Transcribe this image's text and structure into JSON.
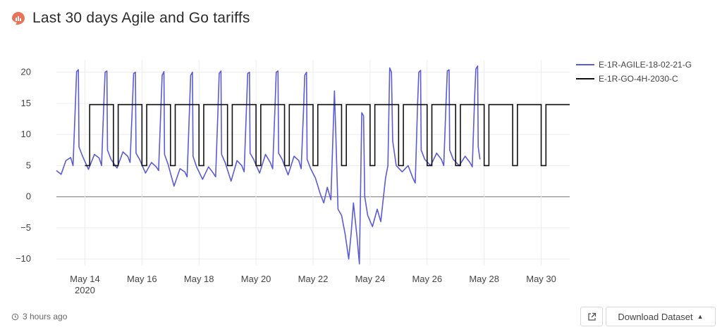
{
  "header": {
    "title": "Last 30 days Agile and Go tariffs"
  },
  "footer": {
    "updated": "3 hours ago",
    "download_label": "Download Dataset",
    "download_caret": "▲"
  },
  "icons": {
    "brand": "chart-badge-icon",
    "clock": "history-icon",
    "external": "external-link-icon",
    "caret": "caret-up-icon"
  },
  "colors": {
    "agile": "#5b5bd6",
    "go": "#111111",
    "brand": "#e8735a",
    "zero_line": "#999999",
    "grid": "#ececec"
  },
  "chart_data": {
    "type": "line",
    "title": "Last 30 days Agile and Go tariffs",
    "xlabel": "",
    "ylabel": "",
    "x_range": [
      "2020-05-13",
      "2020-05-31"
    ],
    "y_range": [
      -11,
      22
    ],
    "y_ticks": [
      20,
      15,
      10,
      5,
      0,
      -5,
      -10
    ],
    "x_ticks": [
      {
        "date": "2020-05-14",
        "label": "May 14",
        "sublabel": "2020"
      },
      {
        "date": "2020-05-16",
        "label": "May 16",
        "sublabel": ""
      },
      {
        "date": "2020-05-18",
        "label": "May 18",
        "sublabel": ""
      },
      {
        "date": "2020-05-20",
        "label": "May 20",
        "sublabel": ""
      },
      {
        "date": "2020-05-22",
        "label": "May 22",
        "sublabel": ""
      },
      {
        "date": "2020-05-24",
        "label": "May 24",
        "sublabel": ""
      },
      {
        "date": "2020-05-26",
        "label": "May 26",
        "sublabel": ""
      },
      {
        "date": "2020-05-28",
        "label": "May 28",
        "sublabel": ""
      },
      {
        "date": "2020-05-30",
        "label": "May 30",
        "sublabel": ""
      }
    ],
    "grid": true,
    "legend_position": "top-right",
    "series": [
      {
        "name": "E-1R-AGILE-18-02-21-G",
        "color": "#5b5bd6",
        "points": [
          [
            "2020-05-13 00:00",
            4.2
          ],
          [
            "2020-05-13 04:00",
            3.6
          ],
          [
            "2020-05-13 08:00",
            5.8
          ],
          [
            "2020-05-13 12:00",
            6.3
          ],
          [
            "2020-05-13 14:00",
            5.0
          ],
          [
            "2020-05-13 16:00",
            15.0
          ],
          [
            "2020-05-13 17:00",
            20.1
          ],
          [
            "2020-05-13 18:30",
            20.4
          ],
          [
            "2020-05-13 19:00",
            8.0
          ],
          [
            "2020-05-13 22:00",
            6.5
          ],
          [
            "2020-05-14 03:00",
            4.4
          ],
          [
            "2020-05-14 08:00",
            6.8
          ],
          [
            "2020-05-14 12:00",
            6.2
          ],
          [
            "2020-05-14 14:00",
            5.0
          ],
          [
            "2020-05-14 16:00",
            15.5
          ],
          [
            "2020-05-14 17:00",
            20.0
          ],
          [
            "2020-05-14 18:30",
            20.2
          ],
          [
            "2020-05-14 19:00",
            7.5
          ],
          [
            "2020-05-14 22:00",
            6.0
          ],
          [
            "2020-05-15 03:00",
            4.6
          ],
          [
            "2020-05-15 08:00",
            7.2
          ],
          [
            "2020-05-15 12:00",
            6.5
          ],
          [
            "2020-05-15 14:00",
            5.5
          ],
          [
            "2020-05-15 16:00",
            15.0
          ],
          [
            "2020-05-15 17:00",
            19.8
          ],
          [
            "2020-05-15 18:30",
            20.0
          ],
          [
            "2020-05-15 19:00",
            7.0
          ],
          [
            "2020-05-15 22:00",
            6.0
          ],
          [
            "2020-05-16 03:00",
            3.8
          ],
          [
            "2020-05-16 08:00",
            5.5
          ],
          [
            "2020-05-16 12:00",
            4.8
          ],
          [
            "2020-05-16 14:00",
            4.2
          ],
          [
            "2020-05-16 16:00",
            14.5
          ],
          [
            "2020-05-16 17:00",
            19.5
          ],
          [
            "2020-05-16 18:30",
            20.1
          ],
          [
            "2020-05-16 19:00",
            6.8
          ],
          [
            "2020-05-16 22:00",
            5.2
          ],
          [
            "2020-05-17 03:00",
            1.7
          ],
          [
            "2020-05-17 08:00",
            4.5
          ],
          [
            "2020-05-17 12:00",
            4.0
          ],
          [
            "2020-05-17 14:00",
            3.2
          ],
          [
            "2020-05-17 16:00",
            14.0
          ],
          [
            "2020-05-17 17:00",
            19.5
          ],
          [
            "2020-05-17 18:30",
            20.0
          ],
          [
            "2020-05-17 19:00",
            6.5
          ],
          [
            "2020-05-17 22:00",
            4.8
          ],
          [
            "2020-05-18 03:00",
            2.8
          ],
          [
            "2020-05-18 08:00",
            4.8
          ],
          [
            "2020-05-18 12:00",
            3.8
          ],
          [
            "2020-05-18 14:00",
            3.2
          ],
          [
            "2020-05-18 16:00",
            14.0
          ],
          [
            "2020-05-18 17:00",
            19.8
          ],
          [
            "2020-05-18 18:30",
            20.2
          ],
          [
            "2020-05-18 19:00",
            6.8
          ],
          [
            "2020-05-18 22:00",
            5.5
          ],
          [
            "2020-05-19 03:00",
            2.5
          ],
          [
            "2020-05-19 08:00",
            5.8
          ],
          [
            "2020-05-19 12:00",
            5.0
          ],
          [
            "2020-05-19 14:00",
            4.0
          ],
          [
            "2020-05-19 16:00",
            14.5
          ],
          [
            "2020-05-19 17:00",
            19.8
          ],
          [
            "2020-05-19 18:30",
            20.0
          ],
          [
            "2020-05-19 19:00",
            7.0
          ],
          [
            "2020-05-19 22:00",
            6.0
          ],
          [
            "2020-05-20 03:00",
            3.8
          ],
          [
            "2020-05-20 08:00",
            6.8
          ],
          [
            "2020-05-20 12:00",
            5.5
          ],
          [
            "2020-05-20 14:00",
            4.5
          ],
          [
            "2020-05-20 16:00",
            14.5
          ],
          [
            "2020-05-20 17:00",
            20.0
          ],
          [
            "2020-05-20 18:30",
            20.2
          ],
          [
            "2020-05-20 19:00",
            7.0
          ],
          [
            "2020-05-20 22:00",
            6.0
          ],
          [
            "2020-05-21 03:00",
            3.5
          ],
          [
            "2020-05-21 08:00",
            6.5
          ],
          [
            "2020-05-21 12:00",
            5.8
          ],
          [
            "2020-05-21 14:00",
            4.5
          ],
          [
            "2020-05-21 16:00",
            14.0
          ],
          [
            "2020-05-21 17:00",
            19.5
          ],
          [
            "2020-05-21 18:30",
            20.0
          ],
          [
            "2020-05-21 19:00",
            6.0
          ],
          [
            "2020-05-21 22:00",
            4.5
          ],
          [
            "2020-05-22 02:00",
            3.0
          ],
          [
            "2020-05-22 06:00",
            0.5
          ],
          [
            "2020-05-22 09:00",
            -1.0
          ],
          [
            "2020-05-22 12:00",
            1.5
          ],
          [
            "2020-05-22 15:00",
            -0.5
          ],
          [
            "2020-05-22 18:00",
            17.0
          ],
          [
            "2020-05-22 19:00",
            11.0
          ],
          [
            "2020-05-22 21:00",
            -2.0
          ],
          [
            "2020-05-23 00:00",
            -3.0
          ],
          [
            "2020-05-23 03:00",
            -6.0
          ],
          [
            "2020-05-23 06:00",
            -10.0
          ],
          [
            "2020-05-23 08:00",
            -6.0
          ],
          [
            "2020-05-23 10:00",
            -1.0
          ],
          [
            "2020-05-23 13:00",
            -6.5
          ],
          [
            "2020-05-23 15:00",
            -10.8
          ],
          [
            "2020-05-23 17:00",
            13.5
          ],
          [
            "2020-05-23 18:30",
            13.0
          ],
          [
            "2020-05-23 19:30",
            0.0
          ],
          [
            "2020-05-23 22:00",
            -3.0
          ],
          [
            "2020-05-24 02:00",
            -4.8
          ],
          [
            "2020-05-24 06:00",
            -2.0
          ],
          [
            "2020-05-24 09:00",
            -4.0
          ],
          [
            "2020-05-24 13:00",
            3.0
          ],
          [
            "2020-05-24 15:00",
            5.0
          ],
          [
            "2020-05-24 16:30",
            20.7
          ],
          [
            "2020-05-24 18:00",
            20.0
          ],
          [
            "2020-05-24 19:00",
            9.0
          ],
          [
            "2020-05-24 22:00",
            5.0
          ],
          [
            "2020-05-25 03:00",
            4.0
          ],
          [
            "2020-05-25 08:00",
            5.0
          ],
          [
            "2020-05-25 12:00",
            3.0
          ],
          [
            "2020-05-25 14:00",
            2.2
          ],
          [
            "2020-05-25 16:00",
            15.0
          ],
          [
            "2020-05-25 17:00",
            20.0
          ],
          [
            "2020-05-25 18:30",
            20.3
          ],
          [
            "2020-05-25 19:00",
            7.5
          ],
          [
            "2020-05-25 22:00",
            6.0
          ],
          [
            "2020-05-26 03:00",
            5.0
          ],
          [
            "2020-05-26 08:00",
            7.0
          ],
          [
            "2020-05-26 12:00",
            6.0
          ],
          [
            "2020-05-26 14:00",
            5.0
          ],
          [
            "2020-05-26 16:00",
            15.5
          ],
          [
            "2020-05-26 17:00",
            20.2
          ],
          [
            "2020-05-26 18:30",
            20.4
          ],
          [
            "2020-05-26 19:00",
            7.5
          ],
          [
            "2020-05-26 22:00",
            6.0
          ],
          [
            "2020-05-27 03:00",
            5.0
          ],
          [
            "2020-05-27 08:00",
            6.5
          ],
          [
            "2020-05-27 12:00",
            5.5
          ],
          [
            "2020-05-27 14:00",
            4.8
          ],
          [
            "2020-05-27 16:00",
            16.0
          ],
          [
            "2020-05-27 17:00",
            20.5
          ],
          [
            "2020-05-27 18:30",
            21.0
          ],
          [
            "2020-05-27 19:00",
            8.0
          ],
          [
            "2020-05-27 20:30",
            6.0
          ]
        ]
      },
      {
        "name": "E-1R-GO-4H-2030-C",
        "color": "#111111",
        "base": 14.8,
        "off_peak": 5.0,
        "start": "2020-05-14 00:00",
        "end": "2020-05-31 00:00",
        "off_peak_window_hours": [
          0,
          4
        ]
      }
    ]
  }
}
